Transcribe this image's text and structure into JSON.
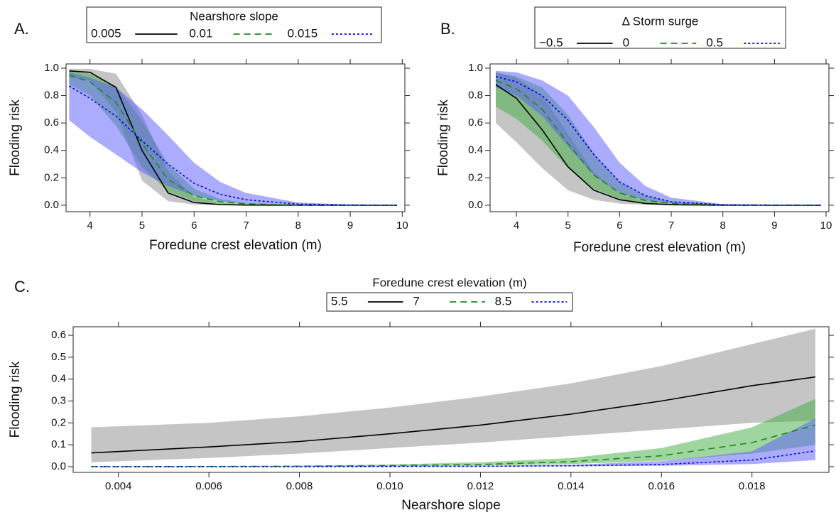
{
  "chart_data": [
    {
      "type": "line",
      "panel_label": "A.",
      "legend_title": "Nearshore slope",
      "xlabel": "Foredune crest elevation (m)",
      "ylabel": "Flooding risk",
      "x": [
        3.6,
        4,
        4.5,
        5,
        5.5,
        6,
        6.5,
        7,
        8,
        9,
        9.9
      ],
      "xlim": [
        3.54,
        10.05
      ],
      "ylim": [
        -0.047,
        1.031
      ],
      "xticks": [
        4,
        5,
        6,
        7,
        8,
        9,
        10
      ],
      "yticks": [
        {
          "value": 0,
          "label": "0.0"
        },
        0.2,
        0.4,
        0.6,
        0.8,
        {
          "value": 1,
          "label": "1.0"
        }
      ],
      "series": [
        {
          "name": "0.005",
          "color": "#000000",
          "band_color": "#8c8c8c",
          "dash": "solid",
          "values": [
            0.98,
            0.97,
            0.86,
            0.4,
            0.09,
            0.02,
            0.005,
            0.001,
            0,
            0,
            0
          ],
          "lower": [
            0.93,
            0.91,
            0.68,
            0.18,
            0.03,
            0.005,
            0.001,
            0,
            0,
            0,
            0
          ],
          "upper": [
            0.995,
            0.995,
            0.96,
            0.66,
            0.25,
            0.06,
            0.015,
            0.004,
            0,
            0,
            0
          ]
        },
        {
          "name": "0.01",
          "color": "#1a8a1a",
          "band_color": "#3fae3f",
          "dash": "dashed",
          "values": [
            0.95,
            0.9,
            0.75,
            0.45,
            0.19,
            0.07,
            0.025,
            0.01,
            0.001,
            0,
            0
          ],
          "lower": [
            0.88,
            0.8,
            0.58,
            0.28,
            0.1,
            0.03,
            0.01,
            0.003,
            0,
            0,
            0
          ],
          "upper": [
            0.98,
            0.96,
            0.87,
            0.62,
            0.3,
            0.12,
            0.045,
            0.017,
            0.002,
            0,
            0
          ]
        },
        {
          "name": "0.015",
          "color": "#0000e6",
          "band_color": "#5a5aff",
          "dash": "dotted",
          "values": [
            0.87,
            0.78,
            0.65,
            0.47,
            0.3,
            0.16,
            0.08,
            0.04,
            0.008,
            0.002,
            0
          ],
          "lower": [
            0.62,
            0.5,
            0.37,
            0.24,
            0.14,
            0.07,
            0.03,
            0.013,
            0.002,
            0,
            0
          ],
          "upper": [
            0.97,
            0.93,
            0.86,
            0.7,
            0.51,
            0.31,
            0.17,
            0.09,
            0.02,
            0.005,
            0.001
          ]
        }
      ]
    },
    {
      "type": "line",
      "panel_label": "B.",
      "legend_title": "Δ Storm surge",
      "xlabel": "Foredune crest elevation (m)",
      "ylabel": "Flooding risk",
      "x": [
        3.6,
        4,
        4.5,
        5,
        5.5,
        6,
        6.5,
        7,
        8,
        9,
        9.9
      ],
      "xlim": [
        3.49,
        10.055
      ],
      "ylim": [
        -0.047,
        1.031
      ],
      "xticks": [
        4,
        5,
        6,
        7,
        8,
        9,
        10
      ],
      "yticks": [
        {
          "value": 0,
          "label": "0.0"
        },
        0.2,
        0.4,
        0.6,
        0.8,
        {
          "value": 1,
          "label": "1.0"
        }
      ],
      "series": [
        {
          "name": "−0.5",
          "color": "#000000",
          "band_color": "#8c8c8c",
          "dash": "solid",
          "values": [
            0.88,
            0.78,
            0.55,
            0.28,
            0.11,
            0.04,
            0.013,
            0.004,
            0,
            0,
            0
          ],
          "lower": [
            0.6,
            0.46,
            0.27,
            0.11,
            0.04,
            0.012,
            0.004,
            0.001,
            0,
            0,
            0
          ],
          "upper": [
            0.97,
            0.93,
            0.8,
            0.52,
            0.24,
            0.09,
            0.03,
            0.01,
            0.001,
            0,
            0
          ]
        },
        {
          "name": "0",
          "color": "#1a8a1a",
          "band_color": "#3fae3f",
          "dash": "dashed",
          "values": [
            0.91,
            0.85,
            0.7,
            0.45,
            0.22,
            0.09,
            0.035,
            0.013,
            0.002,
            0,
            0
          ],
          "lower": [
            0.72,
            0.63,
            0.47,
            0.27,
            0.12,
            0.045,
            0.016,
            0.006,
            0.001,
            0,
            0
          ],
          "upper": [
            0.97,
            0.94,
            0.86,
            0.66,
            0.38,
            0.17,
            0.07,
            0.027,
            0.004,
            0.001,
            0
          ]
        },
        {
          "name": "0.5",
          "color": "#0000e6",
          "band_color": "#5a5aff",
          "dash": "dotted",
          "values": [
            0.94,
            0.9,
            0.8,
            0.62,
            0.37,
            0.17,
            0.07,
            0.025,
            0.004,
            0.001,
            0
          ],
          "lower": [
            0.86,
            0.8,
            0.65,
            0.43,
            0.22,
            0.09,
            0.035,
            0.013,
            0.002,
            0,
            0
          ],
          "upper": [
            0.98,
            0.97,
            0.91,
            0.8,
            0.57,
            0.31,
            0.14,
            0.055,
            0.008,
            0.002,
            0
          ]
        }
      ]
    },
    {
      "type": "line",
      "panel_label": "C.",
      "legend_title": "Foredune crest elevation (m)",
      "xlabel": "Nearshore slope",
      "ylabel": "Flooding risk",
      "x": [
        0.0034,
        0.006,
        0.008,
        0.01,
        0.012,
        0.014,
        0.016,
        0.018,
        0.0194
      ],
      "xlim": [
        0.003,
        0.0197
      ],
      "ylim": [
        -0.026,
        0.639
      ],
      "xticks": [
        0.004,
        0.006,
        0.008,
        {
          "value": 0.01,
          "label": "0.010"
        },
        0.012,
        0.014,
        0.016,
        0.018
      ],
      "yticks": [
        {
          "value": 0,
          "label": "0.0"
        },
        0.1,
        0.2,
        0.3,
        0.4,
        0.5,
        0.6
      ],
      "series": [
        {
          "name": "5.5",
          "color": "#000000",
          "band_color": "#8c8c8c",
          "dash": "solid",
          "values": [
            0.063,
            0.09,
            0.115,
            0.15,
            0.19,
            0.24,
            0.3,
            0.37,
            0.41
          ],
          "lower": [
            0.02,
            0.04,
            0.06,
            0.085,
            0.11,
            0.14,
            0.17,
            0.2,
            0.21
          ],
          "upper": [
            0.18,
            0.2,
            0.23,
            0.27,
            0.32,
            0.38,
            0.46,
            0.56,
            0.63
          ]
        },
        {
          "name": "7",
          "color": "#1a8a1a",
          "band_color": "#3fae3f",
          "dash": "dashed",
          "values": [
            0,
            0.001,
            0.002,
            0.005,
            0.01,
            0.023,
            0.05,
            0.11,
            0.19
          ],
          "lower": [
            0,
            0,
            0.001,
            0.002,
            0.005,
            0.012,
            0.027,
            0.06,
            0.1
          ],
          "upper": [
            0.001,
            0.002,
            0.005,
            0.01,
            0.02,
            0.04,
            0.085,
            0.18,
            0.31
          ]
        },
        {
          "name": "8.5",
          "color": "#0000e6",
          "band_color": "#5a5aff",
          "dash": "dotted",
          "values": [
            0,
            0,
            0,
            0.001,
            0.002,
            0.004,
            0.01,
            0.03,
            0.072
          ],
          "lower": [
            0,
            0,
            0,
            0,
            0.001,
            0.002,
            0.004,
            0.012,
            0.03
          ],
          "upper": [
            0,
            0,
            0.001,
            0.002,
            0.004,
            0.009,
            0.025,
            0.07,
            0.22
          ]
        }
      ]
    }
  ]
}
